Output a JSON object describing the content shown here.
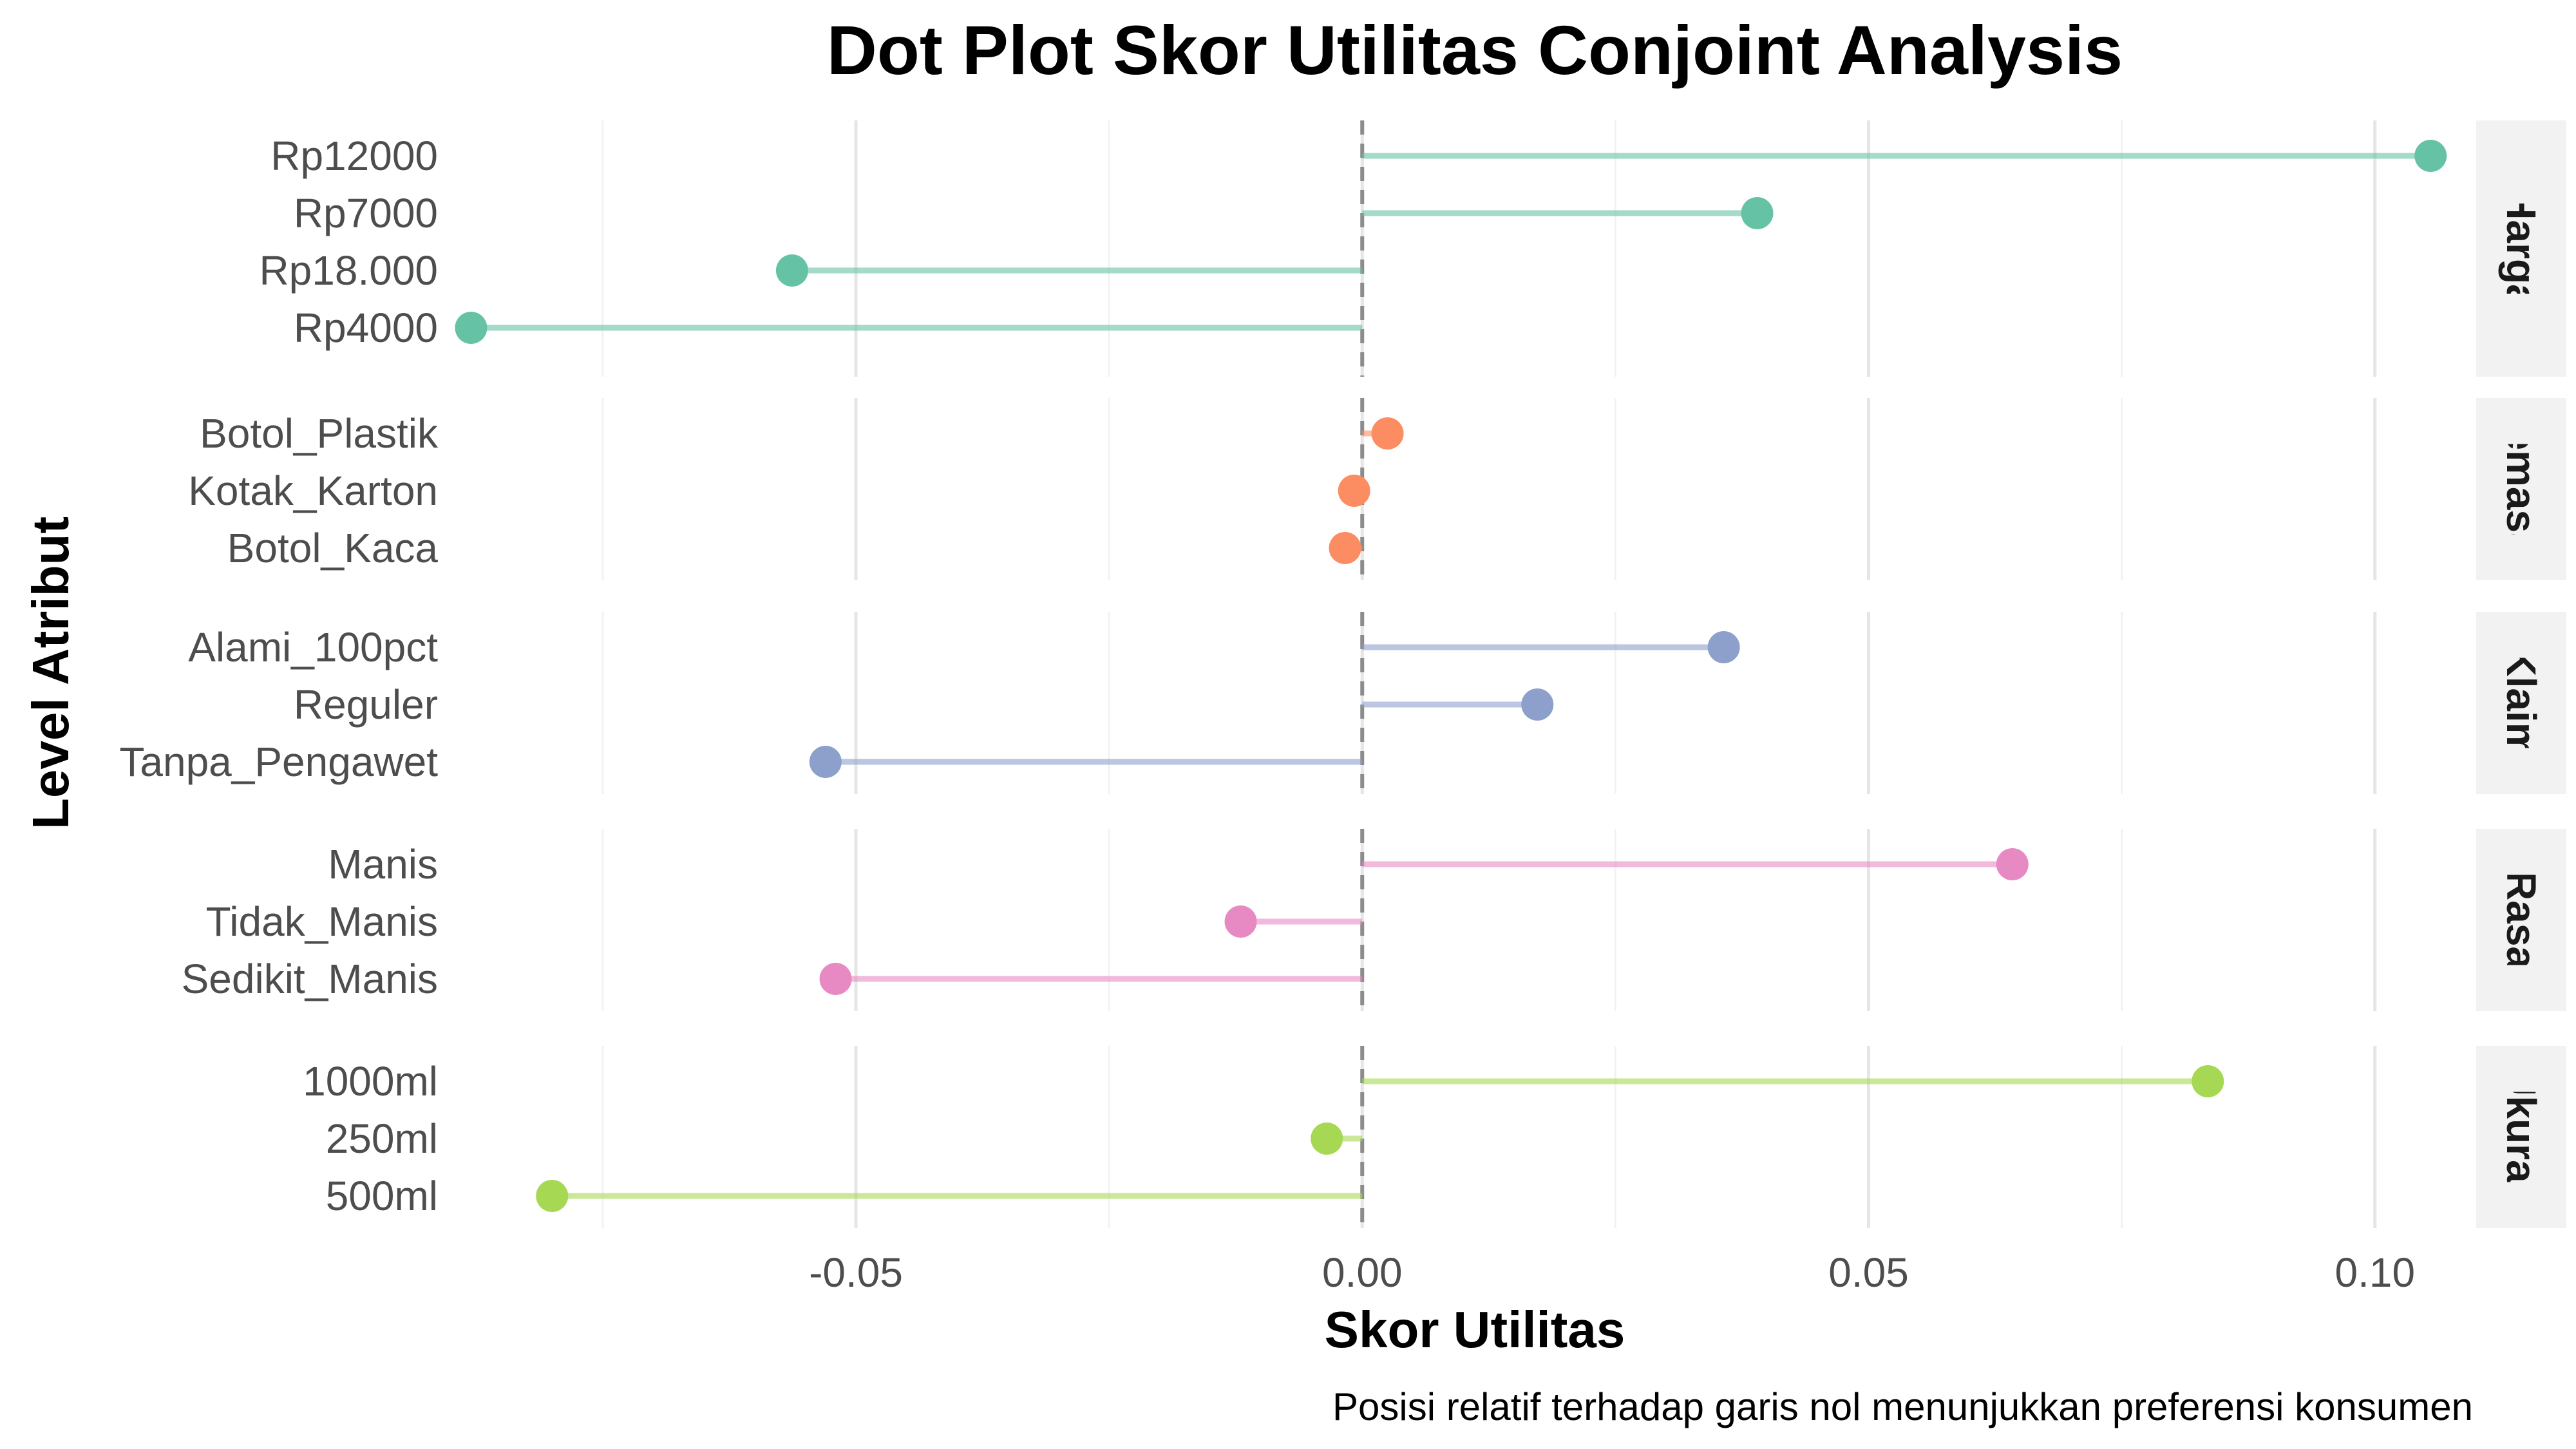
{
  "chart_data": {
    "type": "dot-lollipop",
    "title": "Dot Plot Skor Utilitas Conjoint Analysis",
    "xlabel": "Skor Utilitas",
    "ylabel": "Level Atribut",
    "caption": "Posisi relatif terhadap garis nol menunjukkan preferensi konsumen",
    "xlim": [
      -0.09,
      0.11
    ],
    "x_ticks": [
      -0.05,
      0.0,
      0.05,
      0.1
    ],
    "x_tick_labels": [
      "-0.05",
      "0.00",
      "0.05",
      "0.10"
    ],
    "reference_line": 0,
    "grid": true,
    "legend": "none",
    "facets": [
      {
        "name": "Harga",
        "color": "#66c2a5",
        "levels": [
          {
            "label": "Rp12000",
            "value": 0.1055
          },
          {
            "label": "Rp7000",
            "value": 0.039
          },
          {
            "label": "Rp18.000",
            "value": -0.0563
          },
          {
            "label": "Rp4000",
            "value": -0.088
          }
        ]
      },
      {
        "name": "Kemasan",
        "color": "#fc8d62",
        "levels": [
          {
            "label": "Botol_Plastik",
            "value": 0.0025
          },
          {
            "label": "Kotak_Karton",
            "value": -0.0008
          },
          {
            "label": "Botol_Kaca",
            "value": -0.0017
          }
        ]
      },
      {
        "name": "Klaim",
        "color": "#8da0cb",
        "levels": [
          {
            "label": "Alami_100pct",
            "value": 0.0357
          },
          {
            "label": "Reguler",
            "value": 0.0173
          },
          {
            "label": "Tanpa_Pengawet",
            "value": -0.053
          }
        ]
      },
      {
        "name": "Rasa",
        "color": "#e78ac3",
        "levels": [
          {
            "label": "Manis",
            "value": 0.0642
          },
          {
            "label": "Tidak_Manis",
            "value": -0.012
          },
          {
            "label": "Sedikit_Manis",
            "value": -0.052
          }
        ]
      },
      {
        "name": "Ukuran",
        "color": "#a6d854",
        "levels": [
          {
            "label": "1000ml",
            "value": 0.0835
          },
          {
            "label": "250ml",
            "value": -0.0035
          },
          {
            "label": "500ml",
            "value": -0.08
          }
        ]
      }
    ]
  }
}
